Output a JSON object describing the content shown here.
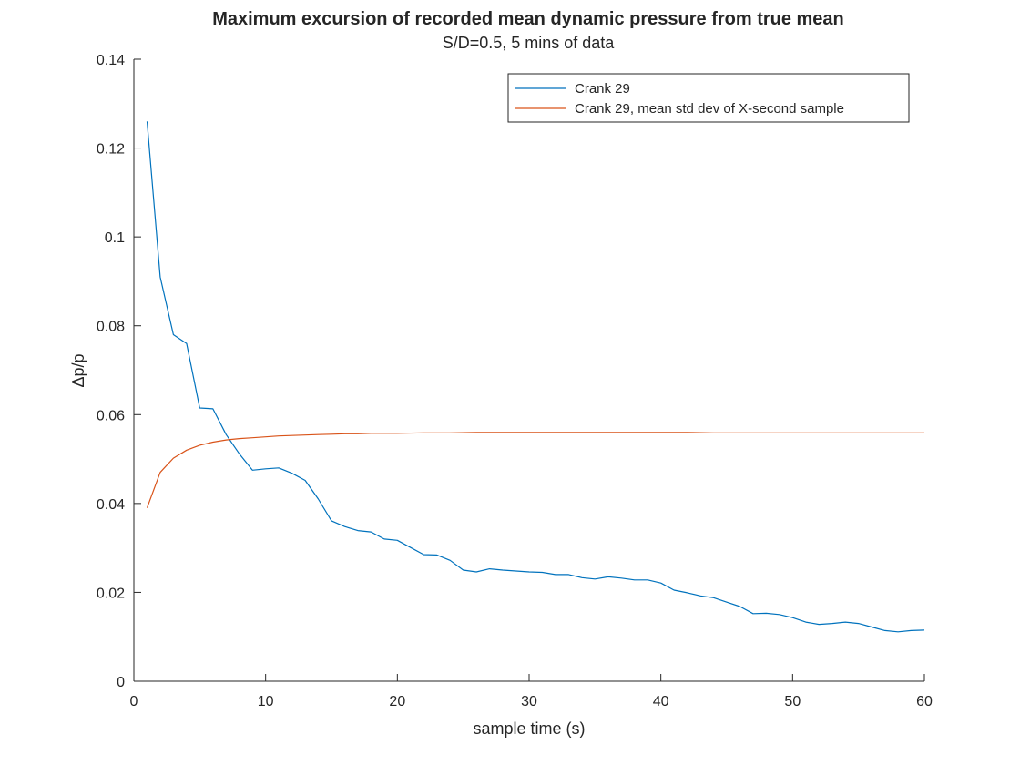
{
  "chart_data": {
    "type": "line",
    "title": "Maximum excursion of recorded mean dynamic pressure from true mean",
    "subtitle": "S/D=0.5, 5 mins of data",
    "xlabel": "sample time (s)",
    "ylabel": "Δp/p",
    "xlim": [
      0,
      60
    ],
    "ylim": [
      0,
      0.14
    ],
    "xticks": [
      "0",
      "10",
      "20",
      "30",
      "40",
      "50",
      "60"
    ],
    "yticks": [
      "0",
      "0.02",
      "0.04",
      "0.06",
      "0.08",
      "0.1",
      "0.12",
      "0.14"
    ],
    "grid": false,
    "legend_position": "top-right",
    "series": [
      {
        "name": "Crank 29",
        "color": "#0072BD",
        "x": [
          1,
          2,
          3,
          4,
          5,
          6,
          7,
          8,
          9,
          10,
          11,
          12,
          13,
          14,
          15,
          16,
          17,
          18,
          19,
          20,
          21,
          22,
          23,
          24,
          25,
          26,
          27,
          28,
          29,
          30,
          31,
          32,
          33,
          34,
          35,
          36,
          37,
          38,
          39,
          40,
          41,
          42,
          43,
          44,
          45,
          46,
          47,
          48,
          49,
          50,
          51,
          52,
          53,
          54,
          55,
          56,
          57,
          58,
          59,
          60
        ],
        "y": [
          0.126,
          0.091,
          0.078,
          0.076,
          0.0615,
          0.0613,
          0.0555,
          0.0512,
          0.0475,
          0.0478,
          0.048,
          0.0468,
          0.0452,
          0.041,
          0.0361,
          0.0348,
          0.0339,
          0.0336,
          0.032,
          0.0317,
          0.0301,
          0.0285,
          0.0284,
          0.0272,
          0.025,
          0.0246,
          0.0253,
          0.025,
          0.0248,
          0.0246,
          0.0245,
          0.024,
          0.024,
          0.0233,
          0.023,
          0.0235,
          0.0232,
          0.0228,
          0.0228,
          0.0221,
          0.0205,
          0.0199,
          0.0192,
          0.0188,
          0.0178,
          0.0168,
          0.0152,
          0.0153,
          0.015,
          0.0143,
          0.0133,
          0.0128,
          0.013,
          0.0133,
          0.013,
          0.0122,
          0.0114,
          0.0111,
          0.0114,
          0.0115
        ]
      },
      {
        "name": "Crank 29, mean std dev of X-second sample",
        "color": "#D95319",
        "x": [
          1,
          2,
          3,
          4,
          5,
          6,
          7,
          8,
          9,
          10,
          11,
          12,
          13,
          14,
          15,
          16,
          17,
          18,
          19,
          20,
          22,
          24,
          26,
          28,
          30,
          32,
          34,
          36,
          38,
          40,
          42,
          44,
          46,
          48,
          50,
          52,
          54,
          56,
          58,
          60
        ],
        "y": [
          0.039,
          0.047,
          0.0502,
          0.052,
          0.0531,
          0.0538,
          0.0543,
          0.0546,
          0.0548,
          0.055,
          0.0552,
          0.0553,
          0.0554,
          0.0555,
          0.0556,
          0.0557,
          0.0557,
          0.0558,
          0.0558,
          0.0558,
          0.0559,
          0.0559,
          0.056,
          0.056,
          0.056,
          0.056,
          0.056,
          0.056,
          0.056,
          0.056,
          0.056,
          0.0559,
          0.0559,
          0.0559,
          0.0559,
          0.0559,
          0.0559,
          0.0559,
          0.0559,
          0.0559
        ]
      }
    ]
  }
}
